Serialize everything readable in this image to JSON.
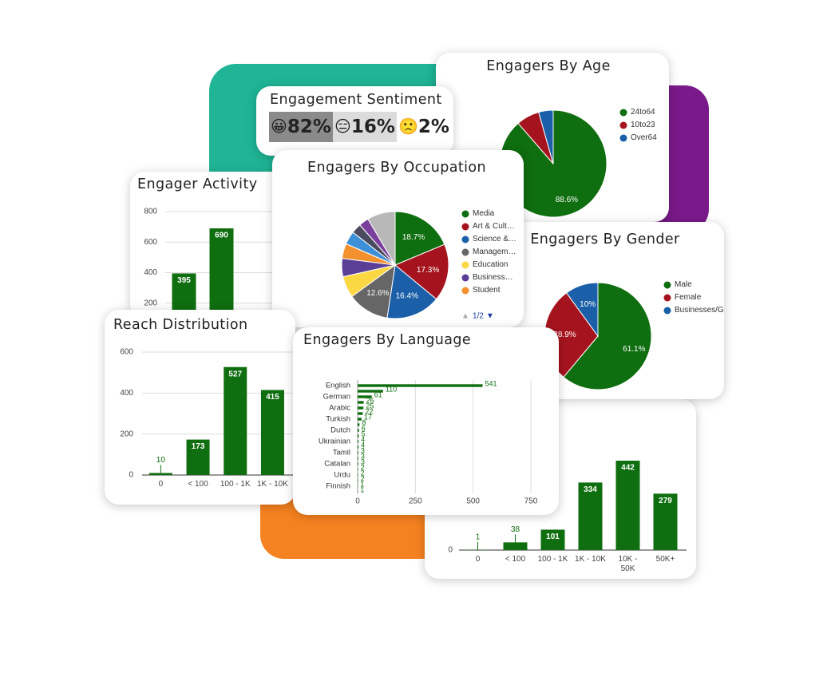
{
  "chart_data": [
    {
      "type": "bar",
      "title": "Engager Activity",
      "categories": [
        null,
        null
      ],
      "values": [
        395,
        690
      ],
      "color": "#0f6e0f",
      "ylim": [
        0,
        800
      ],
      "yticks": [
        200,
        400,
        600,
        800
      ],
      "grid": true
    },
    {
      "type": "pie",
      "title": "Engagers By Age",
      "categories": [
        "24to64",
        "10to23",
        "Over64"
      ],
      "values": [
        88.6,
        7,
        4.4
      ],
      "value_labels": [
        "88.6%",
        null,
        null
      ],
      "colors": [
        "#0f6e0f",
        "#a5141e",
        "#1a5fa8"
      ],
      "legend": "right"
    },
    {
      "type": "bar",
      "categories": [
        "0",
        "< 100",
        "100 - 1K",
        "1K - 10K",
        "10K - 50K",
        "50K+"
      ],
      "values": [
        1,
        38,
        101,
        334,
        442,
        279
      ],
      "color": "#0f6e0f",
      "ylim": [
        0,
        600
      ],
      "yticks": [
        0
      ],
      "grid": true
    },
    {
      "type": "pie",
      "title": "Engagers By Gender",
      "categories": [
        "Male",
        "Female",
        "Businesses/Groups"
      ],
      "values": [
        61.1,
        28.9,
        10
      ],
      "value_labels": [
        "61.1%",
        "28.9%",
        "10%"
      ],
      "colors": [
        "#0f6e0f",
        "#a5141e",
        "#1a5fa8"
      ],
      "legend": "right"
    },
    {
      "type": "pie",
      "title": "Engagers By Occupation",
      "categories": [
        "Media",
        "Art & Cult…",
        "Science &…",
        "Managem…",
        "Education",
        "Business…",
        "Student",
        null,
        null,
        null,
        null
      ],
      "values": [
        18.7,
        17.3,
        16.4,
        12.6,
        6.5,
        5.5,
        4.5,
        4,
        3,
        3,
        8.5
      ],
      "value_labels": [
        "18.7%",
        "17.3%",
        "16.4%",
        "12.6%",
        null,
        null,
        null,
        null,
        null,
        null,
        null
      ],
      "colors": [
        "#0f6e0f",
        "#a5141e",
        "#1a5fa8",
        "#666666",
        "#fbd743",
        "#5b3e96",
        "#f4912f",
        "#3d8fd8",
        "#4a4a5e",
        "#7a3e9c",
        "#b8b8b8"
      ],
      "legend": "right",
      "legend_page": "1/2"
    },
    {
      "type": "bar",
      "title": "Reach Distribution",
      "categories": [
        "0",
        "< 100",
        "100 - 1K",
        "1K - 10K"
      ],
      "values": [
        10,
        173,
        527,
        415
      ],
      "color": "#0f6e0f",
      "ylim": [
        0,
        600
      ],
      "yticks": [
        0,
        200,
        400,
        600
      ],
      "grid": true
    },
    {
      "type": "hbar",
      "title": "Engagers By Language",
      "categories": [
        "English",
        null,
        "German",
        null,
        "Arabic",
        null,
        "Turkish",
        null,
        "Dutch",
        null,
        "Ukrainian",
        null,
        "Tamil",
        null,
        "Catalan",
        null,
        "Urdu",
        null,
        "Finnish",
        null
      ],
      "values": [
        541,
        110,
        61,
        26,
        25,
        22,
        17,
        8,
        6,
        5,
        4,
        4,
        3,
        3,
        3,
        2,
        2,
        2,
        1,
        1
      ],
      "color": "#0f6e0f",
      "xlim": [
        0,
        750
      ],
      "xticks": [
        0,
        250,
        500,
        750
      ],
      "grid": true
    }
  ],
  "sentiment": {
    "title": "Engagement Sentiment",
    "items": [
      {
        "icon": "😀",
        "value": "82%"
      },
      {
        "icon": "😑",
        "value": "16%"
      },
      {
        "icon": "🙁",
        "value": "2%"
      }
    ]
  }
}
